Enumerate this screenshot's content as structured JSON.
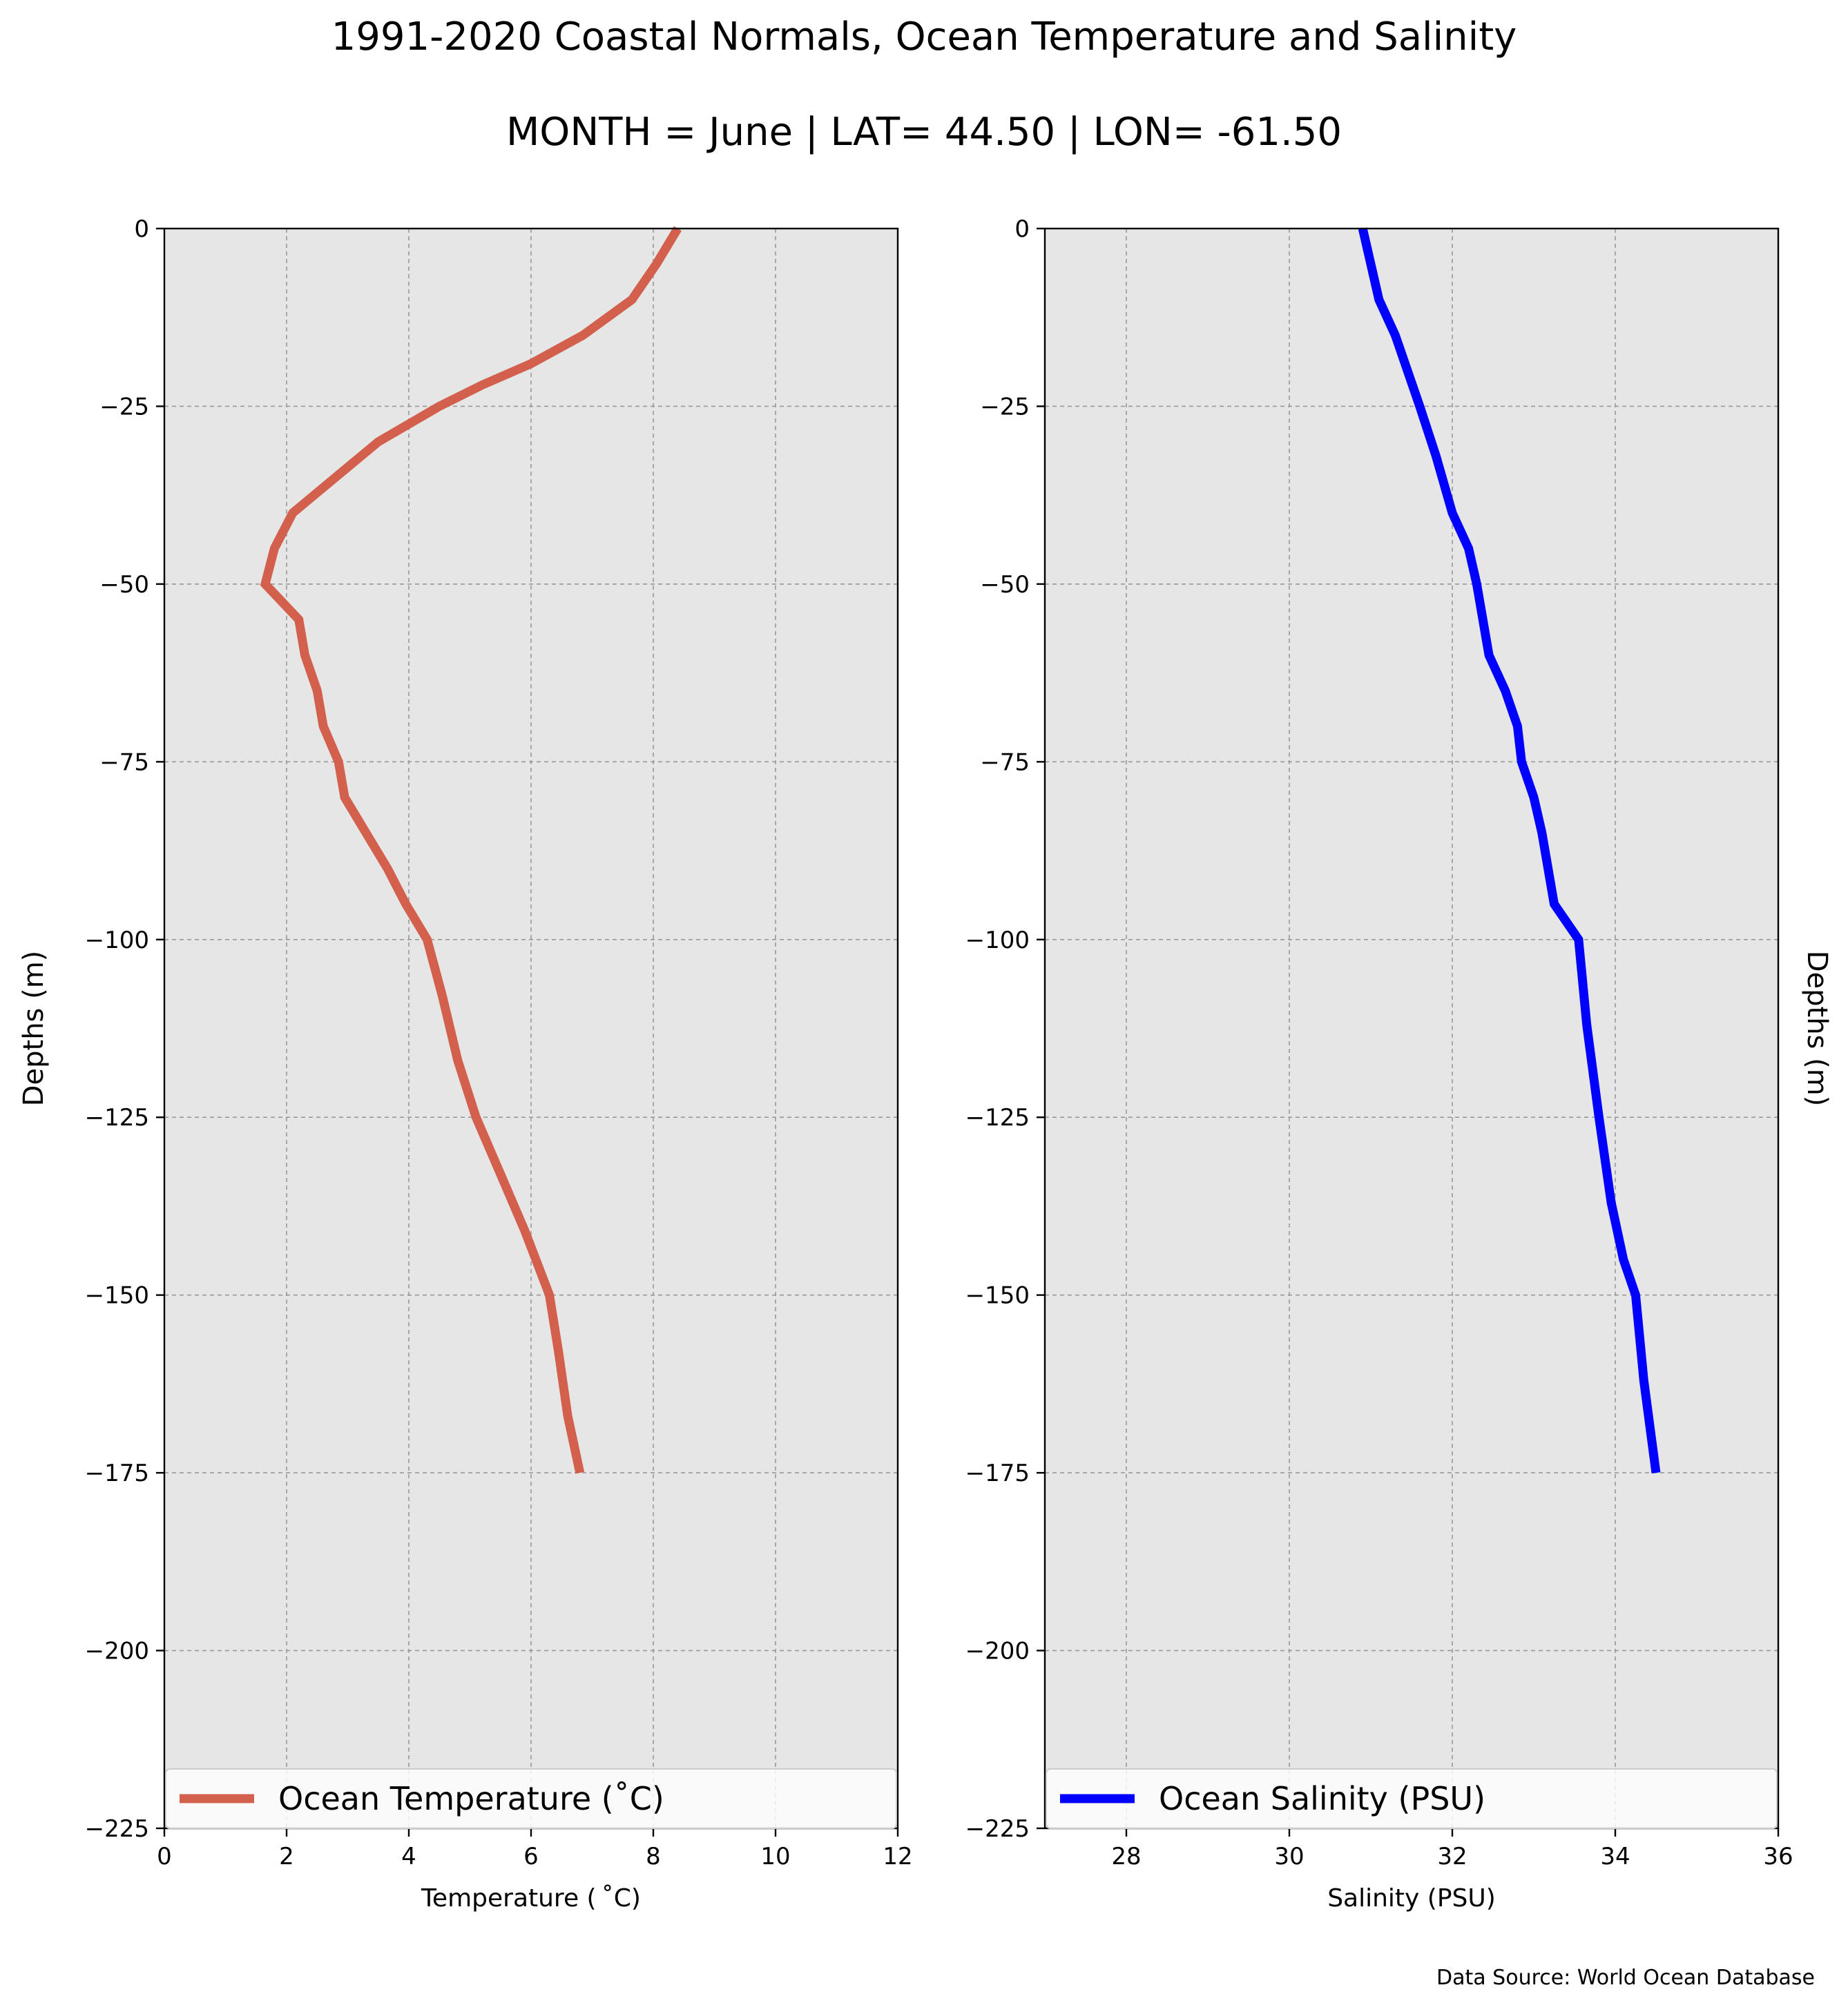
{
  "title": "1991-2020 Coastal Normals, Ocean Temperature and Salinity",
  "subtitle": "MONTH = June | LAT= 44.50 | LON= -61.50",
  "source": "Data Source: World Ocean Database",
  "colors": {
    "temperature": "#d35f4d",
    "salinity": "#0000ff",
    "panel_bg": "#e6e6e6",
    "grid": "#999999"
  },
  "chart_data": [
    {
      "type": "line",
      "xlabel": "Temperature ($^\\circ$C)",
      "xlabel_display": "Temperature ( ˚C)",
      "ylabel": "Depths (m)",
      "xlim": [
        0,
        12
      ],
      "ylim": [
        -225,
        0
      ],
      "xticks": [
        0,
        2,
        4,
        6,
        8,
        10,
        12
      ],
      "yticks": [
        0,
        -25,
        -50,
        -75,
        -100,
        -125,
        -150,
        -175,
        -200,
        -225
      ],
      "grid": true,
      "legend_position": "bottom",
      "series": [
        {
          "name": "Ocean Temperature (˚C)",
          "color": "#d35f4d",
          "x": [
            8.4,
            8.05,
            7.65,
            6.85,
            6.0,
            5.2,
            4.5,
            3.5,
            2.8,
            2.1,
            1.8,
            1.65,
            2.2,
            2.3,
            2.5,
            2.6,
            2.85,
            2.95,
            3.3,
            3.65,
            3.95,
            4.3,
            4.55,
            4.8,
            5.1,
            5.5,
            5.9,
            6.3,
            6.45,
            6.6,
            6.8
          ],
          "y": [
            0,
            -5,
            -10,
            -15,
            -19,
            -22,
            -25,
            -30,
            -35,
            -40,
            -45,
            -50,
            -55,
            -60,
            -65,
            -70,
            -75,
            -80,
            -85,
            -90,
            -95,
            -100,
            -108,
            -117,
            -125,
            -133,
            -141,
            -150,
            -158,
            -167,
            -175
          ]
        }
      ]
    },
    {
      "type": "line",
      "xlabel": "Salinity (PSU)",
      "ylabel": "Depths (m)",
      "xlim": [
        27,
        36
      ],
      "ylim": [
        -225,
        0
      ],
      "xticks": [
        28,
        30,
        32,
        34,
        36
      ],
      "yticks": [
        0,
        -25,
        -50,
        -75,
        -100,
        -125,
        -150,
        -175,
        -200,
        -225
      ],
      "grid": true,
      "legend_position": "bottom",
      "series": [
        {
          "name": "Ocean Salinity (PSU)",
          "color": "#0000ff",
          "x": [
            30.9,
            31.0,
            31.1,
            31.3,
            31.6,
            31.8,
            32.0,
            32.2,
            32.3,
            32.45,
            32.65,
            32.8,
            32.85,
            33.0,
            33.1,
            33.25,
            33.55,
            33.65,
            33.8,
            33.95,
            34.1,
            34.25,
            34.35,
            34.5
          ],
          "y": [
            0,
            -5,
            -10,
            -15,
            -25,
            -32,
            -40,
            -45,
            -50,
            -60,
            -65,
            -70,
            -75,
            -80,
            -85,
            -95,
            -100,
            -112,
            -125,
            -137,
            -145,
            -150,
            -162,
            -175
          ]
        }
      ]
    }
  ]
}
